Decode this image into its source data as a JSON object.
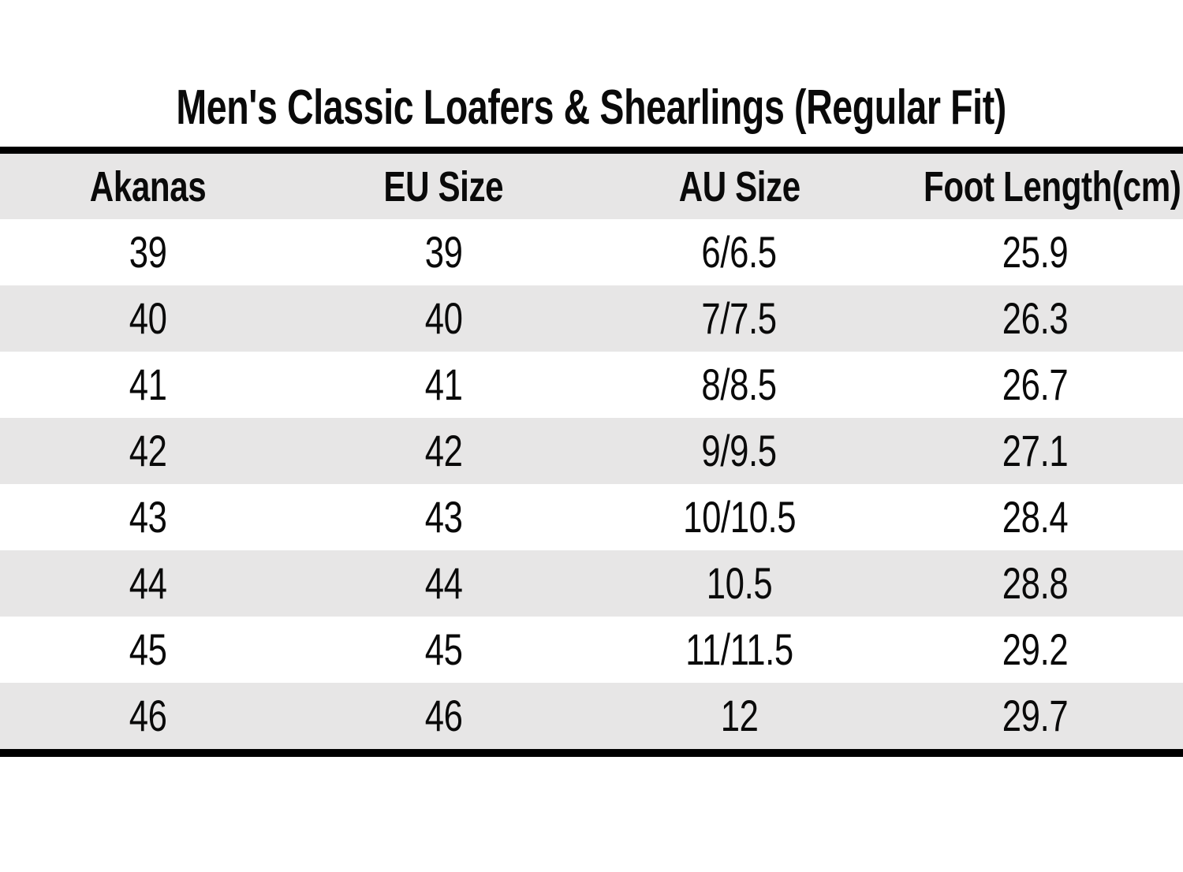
{
  "title": "Men's Classic Loafers & Shearlings (Regular Fit)",
  "table": {
    "columns": [
      "Akanas",
      "EU Size",
      "AU Size",
      "Foot Length(cm)"
    ],
    "rows": [
      [
        "39",
        "39",
        "6/6.5",
        "25.9"
      ],
      [
        "40",
        "40",
        "7/7.5",
        "26.3"
      ],
      [
        "41",
        "41",
        "8/8.5",
        "26.7"
      ],
      [
        "42",
        "42",
        "9/9.5",
        "27.1"
      ],
      [
        "43",
        "43",
        "10/10.5",
        "28.4"
      ],
      [
        "44",
        "44",
        "10.5",
        "28.8"
      ],
      [
        "45",
        "45",
        "11/11.5",
        "29.2"
      ],
      [
        "46",
        "46",
        "12",
        "29.7"
      ]
    ]
  },
  "colors": {
    "stripe": "#e7e6e6",
    "rule": "#000000",
    "text": "#0a0a0a",
    "background": "#ffffff"
  },
  "chart_data": {
    "type": "table",
    "title": "Men's Classic Loafers & Shearlings (Regular Fit)",
    "columns": [
      "Akanas",
      "EU Size",
      "AU Size",
      "Foot Length(cm)"
    ],
    "rows": [
      {
        "akanas": "39",
        "eu_size": "39",
        "au_size": "6/6.5",
        "foot_length_cm": "25.9"
      },
      {
        "akanas": "40",
        "eu_size": "40",
        "au_size": "7/7.5",
        "foot_length_cm": "26.3"
      },
      {
        "akanas": "41",
        "eu_size": "41",
        "au_size": "8/8.5",
        "foot_length_cm": "26.7"
      },
      {
        "akanas": "42",
        "eu_size": "42",
        "au_size": "9/9.5",
        "foot_length_cm": "27.1"
      },
      {
        "akanas": "43",
        "eu_size": "43",
        "au_size": "10/10.5",
        "foot_length_cm": "28.4"
      },
      {
        "akanas": "44",
        "eu_size": "44",
        "au_size": "10.5",
        "foot_length_cm": "28.8"
      },
      {
        "akanas": "45",
        "eu_size": "45",
        "au_size": "11/11.5",
        "foot_length_cm": "29.2"
      },
      {
        "akanas": "46",
        "eu_size": "46",
        "au_size": "12",
        "foot_length_cm": "29.7"
      }
    ],
    "layout": {
      "striped": true,
      "stripe_pattern": "header gray, then rows alternate white/gray starting white",
      "alignment": "all columns centered",
      "rules": "thick black horizontal rule above header and below last row"
    }
  }
}
